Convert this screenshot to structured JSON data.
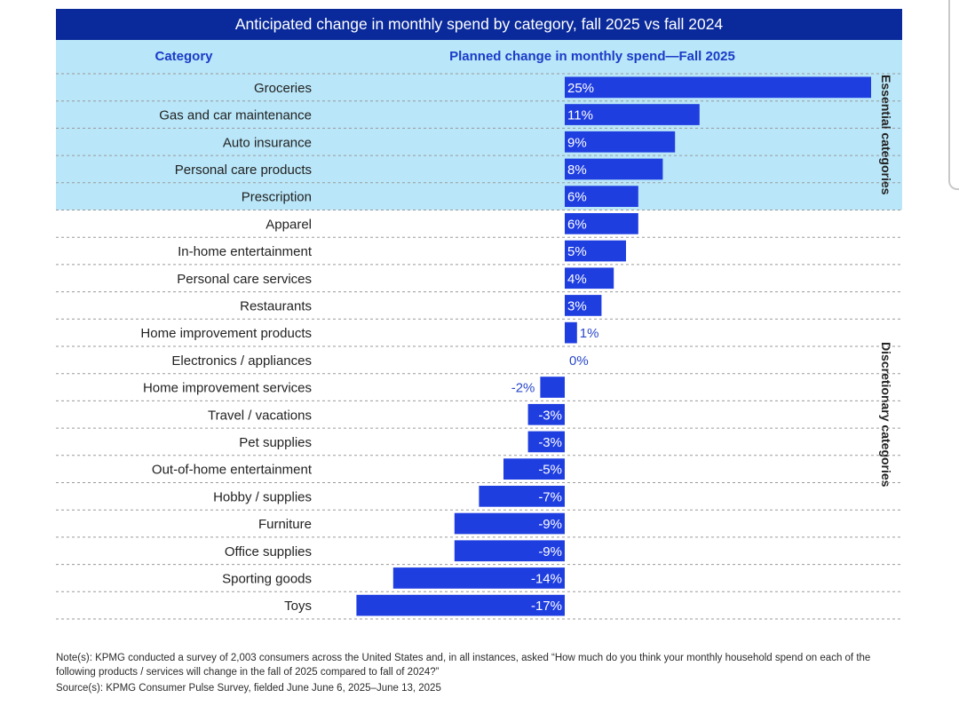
{
  "chart_data": {
    "type": "bar",
    "orientation": "horizontal",
    "title": "Anticipated change in monthly spend by category, fall 2025 vs fall 2024",
    "category_header": "Category",
    "value_header": "Planned change in monthly spend—Fall 2025",
    "groups": [
      {
        "label": "Essential categories",
        "count": 5,
        "fill": "#b9e6f8"
      },
      {
        "label": "Discretionary categories",
        "count": 15,
        "fill": "#ffffff"
      }
    ],
    "categories": [
      "Groceries",
      "Gas and car maintenance",
      "Auto insurance",
      "Personal care products",
      "Prescription",
      "Apparel",
      "In-home entertainment",
      "Personal care services",
      "Restaurants",
      "Home improvement products",
      "Electronics / appliances",
      "Home improvement services",
      "Travel / vacations",
      "Pet supplies",
      "Out-of-home entertainment",
      "Hobby / supplies",
      "Furniture",
      "Office supplies",
      "Sporting goods",
      "Toys"
    ],
    "values": [
      25,
      11,
      9,
      8,
      6,
      6,
      5,
      4,
      3,
      1,
      0,
      -2,
      -3,
      -3,
      -5,
      -7,
      -9,
      -9,
      -14,
      -17
    ],
    "labels": [
      "25%",
      "11%",
      "9%",
      "8%",
      "6%",
      "6%",
      "5%",
      "4%",
      "3%",
      "1%",
      "0%",
      "-2%",
      "-3%",
      "-3%",
      "-5%",
      "-7%",
      "-9%",
      "-9%",
      "-14%",
      "-17%"
    ],
    "unit": "%",
    "xlim": [
      -17,
      25
    ],
    "grid": "dashed row separators",
    "colors": {
      "bar": "#1f3ee0",
      "title_bg": "#0a2a9b",
      "header_text": "#1a3bc9",
      "essential_bg": "#b9e6f8",
      "bar_label_inside": "#ffffff",
      "bar_label_outside": "#2a48c9"
    }
  },
  "footer": {
    "note": "Note(s): KPMG conducted a survey of 2,003 consumers across the United States and, in all instances, asked “How much do you think your monthly household spend on each of the following products / services will change in the fall of 2025 compared to fall of 2024?”",
    "source": "Source(s): KPMG Consumer Pulse Survey, fielded June June 6, 2025–June 13, 2025"
  }
}
